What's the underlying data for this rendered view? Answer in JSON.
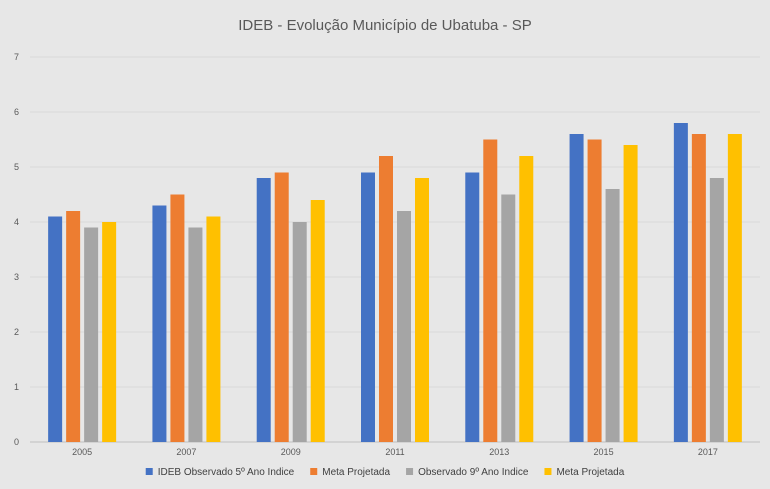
{
  "chart_data": {
    "type": "bar",
    "title": "IDEB - Evolução Município de Ubatuba - SP",
    "xlabel": "",
    "ylabel": "",
    "ylim": [
      0,
      7
    ],
    "yticks": [
      "0",
      "1",
      "2",
      "3",
      "4",
      "5",
      "6",
      "7"
    ],
    "grid": true,
    "legend_position": "bottom",
    "categories": [
      "2005",
      "2007",
      "2009",
      "2011",
      "2013",
      "2015",
      "2017"
    ],
    "series": [
      {
        "name": "IDEB  Observado 5º Ano Indice",
        "color": "#4472c4",
        "values": [
          4.1,
          4.3,
          4.8,
          4.9,
          4.9,
          5.6,
          5.8
        ]
      },
      {
        "name": "Meta Projetada",
        "color": "#ed7d31",
        "values": [
          4.2,
          4.5,
          4.9,
          5.2,
          5.5,
          5.5,
          5.6
        ]
      },
      {
        "name": "Observado 9º Ano Indice",
        "color": "#a5a5a5",
        "values": [
          3.9,
          3.9,
          4.0,
          4.2,
          4.5,
          4.6,
          4.8
        ]
      },
      {
        "name": "Meta Projetada",
        "color": "#ffc000",
        "values": [
          4.0,
          4.1,
          4.4,
          4.8,
          5.2,
          5.4,
          5.6
        ]
      }
    ]
  }
}
